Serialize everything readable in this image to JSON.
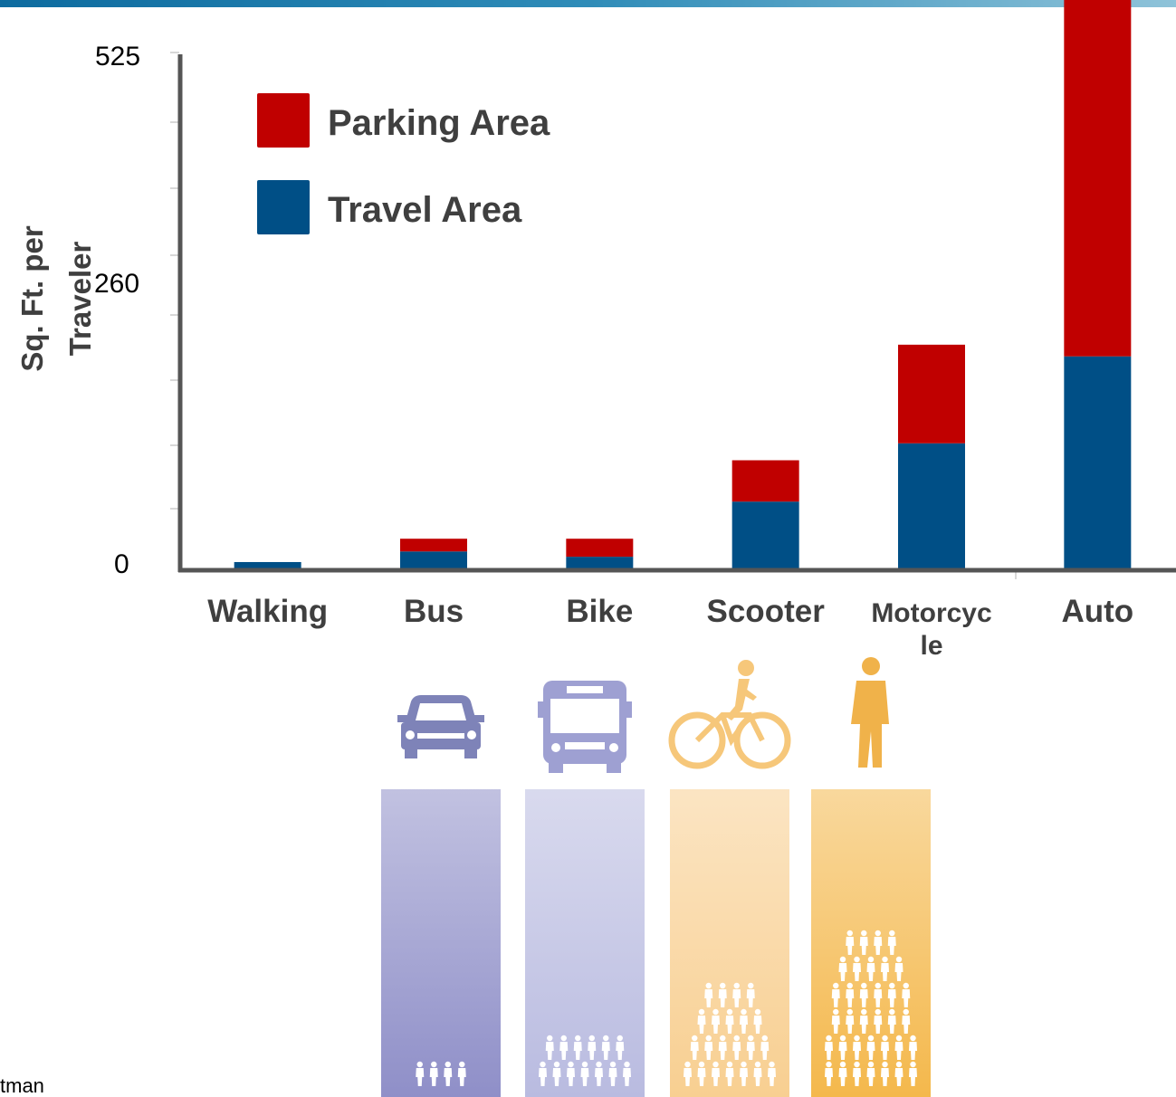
{
  "chart_data": {
    "type": "bar",
    "stacked": true,
    "categories": [
      "Walking",
      "Bus",
      "Bike",
      "Scooter",
      "Motorcycle",
      "Auto"
    ],
    "category_labels": [
      [
        "Walking"
      ],
      [
        "Bus"
      ],
      [
        "Bike"
      ],
      [
        "Scooter"
      ],
      [
        "Motorcyc",
        "le"
      ],
      [
        "Auto"
      ]
    ],
    "series": [
      {
        "name": "Travel Area",
        "color": "#004f86",
        "values": [
          6,
          16,
          11,
          63,
          118,
          200
        ]
      },
      {
        "name": "Parking Area",
        "color": "#c00000",
        "values": [
          0,
          12,
          17,
          39,
          93,
          341
        ]
      }
    ],
    "ylabel": "Sq. Ft. per Traveler",
    "ylabel_lines": [
      "Sq. Ft. per",
      "Traveler"
    ],
    "ytick_labels": [
      "525",
      "260",
      "0"
    ],
    "ytick_values": [
      525,
      260,
      0
    ],
    "ylim": [
      0,
      525
    ],
    "legend": {
      "position": "top-left",
      "order": [
        "Parking Area",
        "Travel Area"
      ]
    },
    "grid": false
  },
  "infographic": {
    "columns": [
      {
        "vehicle_icon": "car-icon",
        "people_count": 4,
        "color": "#8f8fc8"
      },
      {
        "vehicle_icon": "bus-icon",
        "people_count": 13,
        "color": "#b9bbe0"
      },
      {
        "vehicle_icon": "bicycle-icon",
        "people_count": 22,
        "color": "#f8cf91"
      },
      {
        "vehicle_icon": "pedestrian-icon",
        "people_count": 35,
        "color": "#f4b84c"
      }
    ]
  },
  "source_text": "tman"
}
